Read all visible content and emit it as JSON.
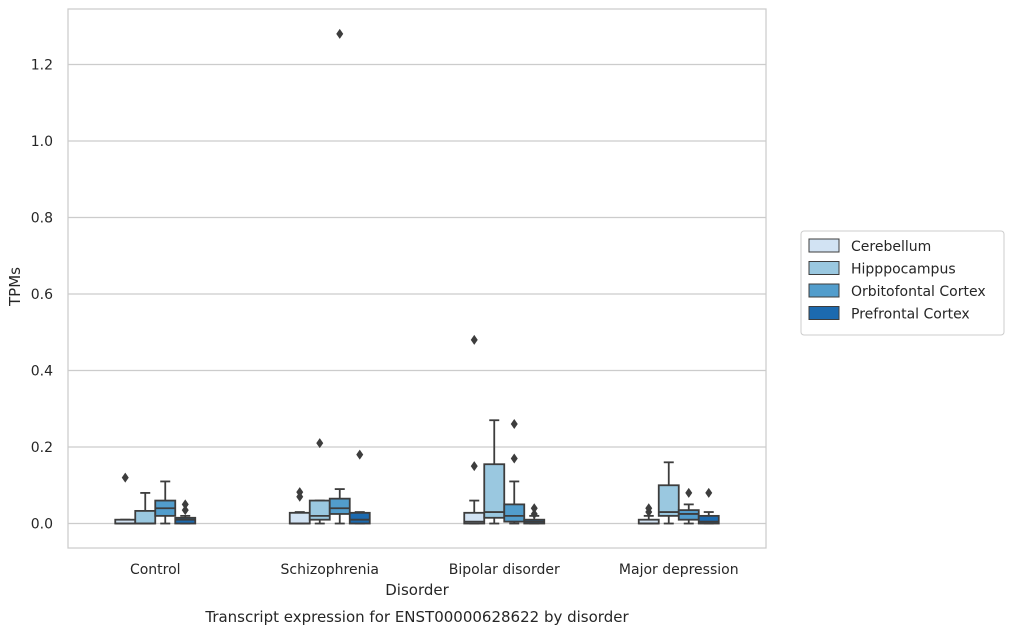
{
  "chart_data": {
    "type": "box",
    "title": "",
    "caption": "Transcript expression for ENST00000628622 by disorder",
    "xlabel": "Disorder",
    "ylabel": "TPMs",
    "ylim": [
      -0.064,
      1.345
    ],
    "yticks": [
      0.0,
      0.2,
      0.4,
      0.6,
      0.8,
      1.0,
      1.2
    ],
    "ytick_labels": [
      "0.0",
      "0.2",
      "0.4",
      "0.6",
      "0.8",
      "1.0",
      "1.2"
    ],
    "grid": "horizontal",
    "legend_position": "right",
    "categories": [
      "Control",
      "Schizophrenia",
      "Bipolar disorder",
      "Major depression"
    ],
    "series": [
      {
        "name": "Cerebellum",
        "color": "#d2e3f3",
        "boxes": [
          {
            "whislo": 0.0,
            "q1": 0.0,
            "med": 0.0,
            "q3": 0.01,
            "whishi": 0.01,
            "fliers": [
              0.12
            ]
          },
          {
            "whislo": 0.0,
            "q1": 0.0,
            "med": 0.0,
            "q3": 0.028,
            "whishi": 0.03,
            "fliers": [
              0.07,
              0.082
            ]
          },
          {
            "whislo": 0.0,
            "q1": 0.0,
            "med": 0.005,
            "q3": 0.028,
            "whishi": 0.06,
            "fliers": [
              0.15,
              0.48
            ]
          },
          {
            "whislo": 0.0,
            "q1": 0.0,
            "med": 0.0,
            "q3": 0.01,
            "whishi": 0.02,
            "fliers": [
              0.03,
              0.04
            ]
          }
        ]
      },
      {
        "name": "Hipppocampus",
        "color": "#9ac8e0",
        "boxes": [
          {
            "whislo": 0.0,
            "q1": 0.0,
            "med": 0.0,
            "q3": 0.033,
            "whishi": 0.08,
            "fliers": []
          },
          {
            "whislo": 0.0,
            "q1": 0.01,
            "med": 0.02,
            "q3": 0.06,
            "whishi": 0.06,
            "fliers": [
              0.21
            ]
          },
          {
            "whislo": 0.0,
            "q1": 0.015,
            "med": 0.03,
            "q3": 0.155,
            "whishi": 0.27,
            "fliers": []
          },
          {
            "whislo": 0.0,
            "q1": 0.02,
            "med": 0.03,
            "q3": 0.1,
            "whishi": 0.16,
            "fliers": []
          }
        ]
      },
      {
        "name": "Orbitofontal Cortex",
        "color": "#529dcc",
        "boxes": [
          {
            "whislo": 0.0,
            "q1": 0.02,
            "med": 0.04,
            "q3": 0.06,
            "whishi": 0.11,
            "fliers": []
          },
          {
            "whislo": 0.0,
            "q1": 0.025,
            "med": 0.04,
            "q3": 0.065,
            "whishi": 0.09,
            "fliers": [
              1.28
            ]
          },
          {
            "whislo": 0.0,
            "q1": 0.005,
            "med": 0.02,
            "q3": 0.05,
            "whishi": 0.11,
            "fliers": [
              0.17,
              0.26
            ]
          },
          {
            "whislo": 0.0,
            "q1": 0.01,
            "med": 0.025,
            "q3": 0.035,
            "whishi": 0.05,
            "fliers": [
              0.08
            ]
          }
        ]
      },
      {
        "name": "Prefrontal Cortex",
        "color": "#1c6aaf",
        "boxes": [
          {
            "whislo": 0.0,
            "q1": 0.0,
            "med": 0.01,
            "q3": 0.015,
            "whishi": 0.02,
            "fliers": [
              0.035,
              0.05
            ]
          },
          {
            "whislo": 0.0,
            "q1": 0.0,
            "med": 0.01,
            "q3": 0.028,
            "whishi": 0.03,
            "fliers": [
              0.18
            ]
          },
          {
            "whislo": 0.0,
            "q1": 0.0,
            "med": 0.005,
            "q3": 0.01,
            "whishi": 0.02,
            "fliers": [
              0.025,
              0.04
            ]
          },
          {
            "whislo": 0.0,
            "q1": 0.0,
            "med": 0.005,
            "q3": 0.02,
            "whishi": 0.03,
            "fliers": [
              0.08
            ]
          }
        ]
      }
    ]
  }
}
